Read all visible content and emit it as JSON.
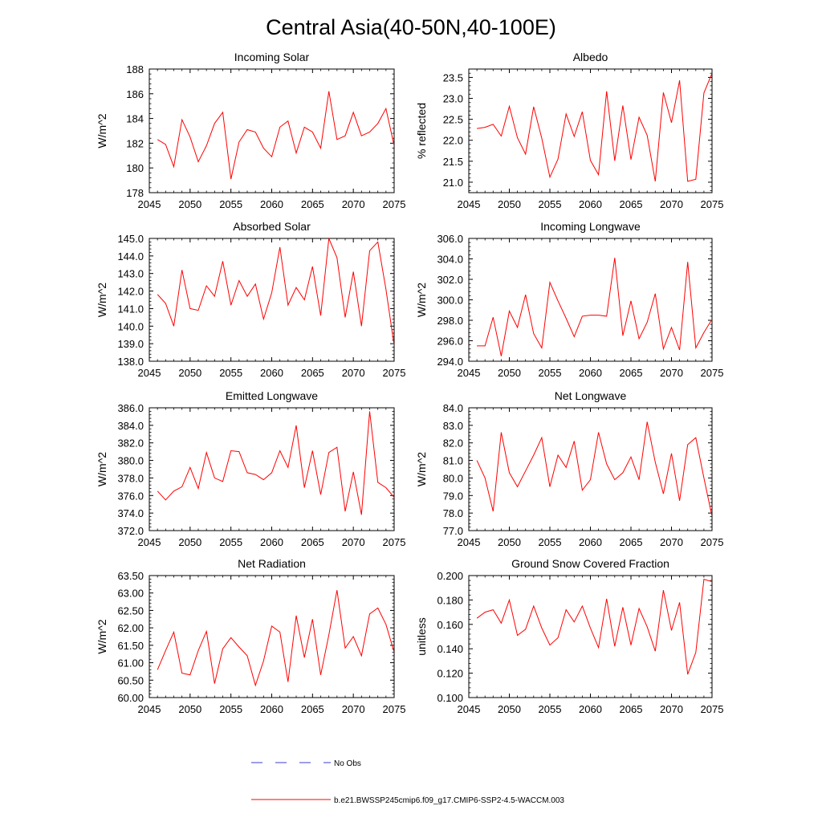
{
  "figure": {
    "title": "Central Asia(40-50N,40-100E)",
    "legend": {
      "obs_label": "No Obs",
      "model_label": "b.e21.BWSSP245cmip6.f09_g17.CMIP6-SSP2-4.5-WACCM.003",
      "obs_color": "#3b3bd0",
      "model_color": "#ff0000"
    }
  },
  "chart_data": [
    {
      "type": "line",
      "title": "Incoming Solar",
      "ylabel": "W/m^2",
      "xlim": [
        2045,
        2075
      ],
      "ylim": [
        178,
        188
      ],
      "yticks": [
        178,
        180,
        182,
        184,
        186,
        188
      ],
      "ytick_labels": [
        "178",
        "180",
        "182",
        "184",
        "186",
        "188"
      ],
      "xticks": [
        2045,
        2050,
        2055,
        2060,
        2065,
        2070,
        2075
      ],
      "xtick_labels": [
        "2045",
        "2050",
        "2055",
        "2060",
        "2065",
        "2070",
        "2075"
      ],
      "x": [
        2046,
        2047,
        2048,
        2049,
        2050,
        2051,
        2052,
        2053,
        2054,
        2055,
        2056,
        2057,
        2058,
        2059,
        2060,
        2061,
        2062,
        2063,
        2064,
        2065,
        2066,
        2067,
        2068,
        2069,
        2070,
        2071,
        2072,
        2073,
        2074,
        2075
      ],
      "values": [
        182.3,
        181.9,
        180.1,
        183.9,
        182.5,
        180.5,
        181.8,
        183.6,
        184.5,
        179.1,
        182.1,
        183.1,
        182.9,
        181.6,
        180.9,
        183.3,
        183.8,
        181.2,
        183.3,
        182.9,
        181.6,
        186.2,
        182.3,
        182.6,
        184.5,
        182.6,
        182.9,
        183.6,
        184.8,
        181.8
      ],
      "line_color": "#ff0000"
    },
    {
      "type": "line",
      "title": "Albedo",
      "ylabel": "% reflected",
      "xlim": [
        2045,
        2075
      ],
      "ylim": [
        20.75,
        23.7
      ],
      "yticks": [
        21.0,
        21.5,
        22.0,
        22.5,
        23.0,
        23.5
      ],
      "ytick_labels": [
        "21.0",
        "21.5",
        "22.0",
        "22.5",
        "23.0",
        "23.5"
      ],
      "xticks": [
        2045,
        2050,
        2055,
        2060,
        2065,
        2070,
        2075
      ],
      "xtick_labels": [
        "2045",
        "2050",
        "2055",
        "2060",
        "2065",
        "2070",
        "2075"
      ],
      "x": [
        2046,
        2047,
        2048,
        2049,
        2050,
        2051,
        2052,
        2053,
        2054,
        2055,
        2056,
        2057,
        2058,
        2059,
        2060,
        2061,
        2062,
        2063,
        2064,
        2065,
        2066,
        2067,
        2068,
        2069,
        2070,
        2071,
        2072,
        2073,
        2074,
        2075
      ],
      "values": [
        22.28,
        22.31,
        22.38,
        22.1,
        22.81,
        22.06,
        21.67,
        22.8,
        22.05,
        21.12,
        21.55,
        22.63,
        22.09,
        22.68,
        21.52,
        21.18,
        23.17,
        21.51,
        22.83,
        21.54,
        22.55,
        22.12,
        21.02,
        23.14,
        22.42,
        23.43,
        21.02,
        21.07,
        23.13,
        23.6
      ],
      "line_color": "#ff0000"
    },
    {
      "type": "line",
      "title": "Absorbed Solar",
      "ylabel": "W/m^2",
      "xlim": [
        2045,
        2075
      ],
      "ylim": [
        138.0,
        145.0
      ],
      "yticks": [
        138.0,
        139.0,
        140.0,
        141.0,
        142.0,
        143.0,
        144.0,
        145.0
      ],
      "ytick_labels": [
        "138.0",
        "139.0",
        "140.0",
        "141.0",
        "142.0",
        "143.0",
        "144.0",
        "145.0"
      ],
      "xticks": [
        2045,
        2050,
        2055,
        2060,
        2065,
        2070,
        2075
      ],
      "xtick_labels": [
        "2045",
        "2050",
        "2055",
        "2060",
        "2065",
        "2070",
        "2075"
      ],
      "x": [
        2046,
        2047,
        2048,
        2049,
        2050,
        2051,
        2052,
        2053,
        2054,
        2055,
        2056,
        2057,
        2058,
        2059,
        2060,
        2061,
        2062,
        2063,
        2064,
        2065,
        2066,
        2067,
        2068,
        2069,
        2070,
        2071,
        2072,
        2073,
        2074,
        2075
      ],
      "values": [
        141.8,
        141.3,
        140.0,
        143.2,
        141.0,
        140.9,
        142.3,
        141.7,
        143.7,
        141.2,
        142.6,
        141.7,
        142.4,
        140.4,
        141.9,
        144.5,
        141.2,
        142.2,
        141.5,
        143.4,
        140.6,
        145.0,
        143.9,
        140.5,
        143.1,
        140.0,
        144.3,
        144.8,
        142.1,
        138.9
      ],
      "line_color": "#ff0000"
    },
    {
      "type": "line",
      "title": "Incoming Longwave",
      "ylabel": "W/m^2",
      "xlim": [
        2045,
        2075
      ],
      "ylim": [
        294.0,
        306.0
      ],
      "yticks": [
        294.0,
        296.0,
        298.0,
        300.0,
        302.0,
        304.0,
        306.0
      ],
      "ytick_labels": [
        "294.0",
        "296.0",
        "298.0",
        "300.0",
        "302.0",
        "304.0",
        "306.0"
      ],
      "xticks": [
        2045,
        2050,
        2055,
        2060,
        2065,
        2070,
        2075
      ],
      "xtick_labels": [
        "2045",
        "2050",
        "2055",
        "2060",
        "2065",
        "2070",
        "2075"
      ],
      "x": [
        2046,
        2047,
        2048,
        2049,
        2050,
        2051,
        2052,
        2053,
        2054,
        2055,
        2056,
        2057,
        2058,
        2059,
        2060,
        2061,
        2062,
        2063,
        2064,
        2065,
        2066,
        2067,
        2068,
        2069,
        2070,
        2071,
        2072,
        2073,
        2074,
        2075
      ],
      "values": [
        295.5,
        295.5,
        298.3,
        294.5,
        298.9,
        297.3,
        300.5,
        296.7,
        295.3,
        301.7,
        299.9,
        298.2,
        296.4,
        298.4,
        298.5,
        298.5,
        298.4,
        304.1,
        296.5,
        299.9,
        296.2,
        297.8,
        300.6,
        295.2,
        297.3,
        295.1,
        303.7,
        295.3,
        296.8,
        298.1
      ],
      "line_color": "#ff0000"
    },
    {
      "type": "line",
      "title": "Emitted Longwave",
      "ylabel": "W/m^2",
      "xlim": [
        2045,
        2075
      ],
      "ylim": [
        372.0,
        386.0
      ],
      "yticks": [
        372.0,
        374.0,
        376.0,
        378.0,
        380.0,
        382.0,
        384.0,
        386.0
      ],
      "ytick_labels": [
        "372.0",
        "374.0",
        "376.0",
        "378.0",
        "380.0",
        "382.0",
        "384.0",
        "386.0"
      ],
      "xticks": [
        2045,
        2050,
        2055,
        2060,
        2065,
        2070,
        2075
      ],
      "xtick_labels": [
        "2045",
        "2050",
        "2055",
        "2060",
        "2065",
        "2070",
        "2075"
      ],
      "x": [
        2046,
        2047,
        2048,
        2049,
        2050,
        2051,
        2052,
        2053,
        2054,
        2055,
        2056,
        2057,
        2058,
        2059,
        2060,
        2061,
        2062,
        2063,
        2064,
        2065,
        2066,
        2067,
        2068,
        2069,
        2070,
        2071,
        2072,
        2073,
        2074,
        2075
      ],
      "values": [
        376.5,
        375.5,
        376.5,
        377.0,
        379.2,
        376.8,
        380.9,
        378.0,
        377.6,
        381.1,
        381.0,
        378.6,
        378.4,
        377.8,
        378.6,
        381.1,
        379.2,
        384.0,
        376.9,
        381.1,
        376.1,
        380.9,
        381.5,
        374.2,
        378.7,
        373.8,
        385.6,
        377.5,
        376.9,
        375.8
      ],
      "line_color": "#ff0000"
    },
    {
      "type": "line",
      "title": "Net Longwave",
      "ylabel": "W/m^2",
      "xlim": [
        2045,
        2075
      ],
      "ylim": [
        77.0,
        84.0
      ],
      "yticks": [
        77.0,
        78.0,
        79.0,
        80.0,
        81.0,
        82.0,
        83.0,
        84.0
      ],
      "ytick_labels": [
        "77.0",
        "78.0",
        "79.0",
        "80.0",
        "81.0",
        "82.0",
        "83.0",
        "84.0"
      ],
      "xticks": [
        2045,
        2050,
        2055,
        2060,
        2065,
        2070,
        2075
      ],
      "xtick_labels": [
        "2045",
        "2050",
        "2055",
        "2060",
        "2065",
        "2070",
        "2075"
      ],
      "x": [
        2046,
        2047,
        2048,
        2049,
        2050,
        2051,
        2052,
        2053,
        2054,
        2055,
        2056,
        2057,
        2058,
        2059,
        2060,
        2061,
        2062,
        2063,
        2064,
        2065,
        2066,
        2067,
        2068,
        2069,
        2070,
        2071,
        2072,
        2073,
        2074,
        2075
      ],
      "values": [
        81.0,
        80.0,
        78.1,
        82.6,
        80.3,
        79.5,
        80.4,
        81.3,
        82.3,
        79.5,
        81.3,
        80.6,
        82.1,
        79.3,
        79.9,
        82.6,
        80.8,
        79.9,
        80.3,
        81.2,
        79.9,
        83.2,
        80.9,
        79.1,
        81.4,
        78.7,
        81.9,
        82.3,
        80.0,
        77.8
      ],
      "line_color": "#ff0000"
    },
    {
      "type": "line",
      "title": "Net Radiation",
      "ylabel": "W/m^2",
      "xlim": [
        2045,
        2075
      ],
      "ylim": [
        60.0,
        63.5
      ],
      "yticks": [
        60.0,
        60.5,
        61.0,
        61.5,
        62.0,
        62.5,
        63.0,
        63.5
      ],
      "ytick_labels": [
        "60.00",
        "60.50",
        "61.00",
        "61.50",
        "62.00",
        "62.50",
        "63.00",
        "63.50"
      ],
      "xticks": [
        2045,
        2050,
        2055,
        2060,
        2065,
        2070,
        2075
      ],
      "xtick_labels": [
        "2045",
        "2050",
        "2055",
        "2060",
        "2065",
        "2070",
        "2075"
      ],
      "x": [
        2046,
        2047,
        2048,
        2049,
        2050,
        2051,
        2052,
        2053,
        2054,
        2055,
        2056,
        2057,
        2058,
        2059,
        2060,
        2061,
        2062,
        2063,
        2064,
        2065,
        2066,
        2067,
        2068,
        2069,
        2070,
        2071,
        2072,
        2073,
        2074,
        2075
      ],
      "values": [
        60.8,
        61.35,
        61.88,
        60.7,
        60.65,
        61.35,
        61.9,
        60.4,
        61.4,
        61.72,
        61.45,
        61.2,
        60.35,
        61.05,
        62.05,
        61.88,
        60.45,
        62.35,
        61.15,
        62.25,
        60.65,
        61.8,
        63.08,
        61.42,
        61.75,
        61.2,
        62.4,
        62.57,
        62.1,
        61.3
      ],
      "line_color": "#ff0000"
    },
    {
      "type": "line",
      "title": "Ground Snow Covered Fraction",
      "ylabel": "unitless",
      "xlim": [
        2045,
        2075
      ],
      "ylim": [
        0.1,
        0.2
      ],
      "yticks": [
        0.1,
        0.12,
        0.14,
        0.16,
        0.18,
        0.2
      ],
      "ytick_labels": [
        "0.100",
        "0.120",
        "0.140",
        "0.160",
        "0.180",
        "0.200"
      ],
      "xticks": [
        2045,
        2050,
        2055,
        2060,
        2065,
        2070,
        2075
      ],
      "xtick_labels": [
        "2045",
        "2050",
        "2055",
        "2060",
        "2065",
        "2070",
        "2075"
      ],
      "x": [
        2046,
        2047,
        2048,
        2049,
        2050,
        2051,
        2052,
        2053,
        2054,
        2055,
        2056,
        2057,
        2058,
        2059,
        2060,
        2061,
        2062,
        2063,
        2064,
        2065,
        2066,
        2067,
        2068,
        2069,
        2070,
        2071,
        2072,
        2073,
        2074,
        2075
      ],
      "values": [
        0.165,
        0.17,
        0.172,
        0.161,
        0.18,
        0.151,
        0.156,
        0.175,
        0.157,
        0.143,
        0.149,
        0.172,
        0.162,
        0.175,
        0.157,
        0.141,
        0.181,
        0.142,
        0.174,
        0.143,
        0.173,
        0.158,
        0.138,
        0.188,
        0.155,
        0.178,
        0.119,
        0.137,
        0.197,
        0.195
      ],
      "line_color": "#ff0000"
    }
  ]
}
